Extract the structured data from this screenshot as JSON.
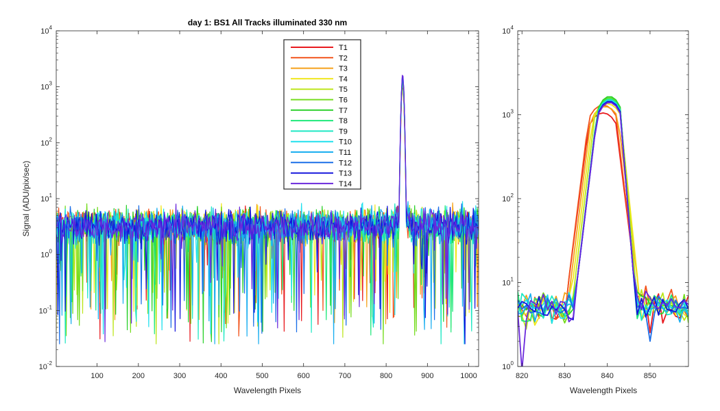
{
  "chart_data": [
    {
      "type": "line",
      "title": "day 1: BS1   All Tracks illuminated   330 nm",
      "xlabel": "Wavelength Pixels",
      "ylabel": "Signal (ADU/pix/sec)",
      "yscale": "log",
      "xlim": [
        1,
        1024
      ],
      "ylim": [
        0.01,
        10000
      ],
      "xticks": [
        100,
        200,
        300,
        400,
        500,
        600,
        700,
        800,
        900,
        1000
      ],
      "yticks": [
        0.01,
        0.1,
        1,
        10,
        100,
        1000,
        10000
      ],
      "ytick_labels": [
        [
          "10",
          "-2"
        ],
        [
          "10",
          "-1"
        ],
        [
          "10",
          "0"
        ],
        [
          "10",
          "1"
        ],
        [
          "10",
          "2"
        ],
        [
          "10",
          "3"
        ],
        [
          "10",
          "4"
        ]
      ],
      "grid": false,
      "legend_position": "top-center",
      "baseline_signal_range": [
        0.03,
        9
      ],
      "peak": {
        "x_center": 840,
        "x_range": [
          834,
          846
        ],
        "y_max": [
          1000,
          1600
        ]
      },
      "series": [
        {
          "name": "T1",
          "color": "#e8191e"
        },
        {
          "name": "T2",
          "color": "#f2541c"
        },
        {
          "name": "T3",
          "color": "#f5a11a"
        },
        {
          "name": "T4",
          "color": "#f0e61c"
        },
        {
          "name": "T5",
          "color": "#bde61c"
        },
        {
          "name": "T6",
          "color": "#74dc1c"
        },
        {
          "name": "T7",
          "color": "#2cd12c"
        },
        {
          "name": "T8",
          "color": "#1ee87a"
        },
        {
          "name": "T9",
          "color": "#1ee8c4"
        },
        {
          "name": "T10",
          "color": "#1ee0ee"
        },
        {
          "name": "T11",
          "color": "#1aaef0"
        },
        {
          "name": "T12",
          "color": "#1a6ee8"
        },
        {
          "name": "T13",
          "color": "#1414dc"
        },
        {
          "name": "T14",
          "color": "#6a28dc"
        }
      ]
    },
    {
      "type": "line",
      "title": "",
      "xlabel": "Wavelength Pixels",
      "ylabel": "",
      "yscale": "log",
      "xlim": [
        819,
        859
      ],
      "ylim": [
        1,
        10000
      ],
      "xticks": [
        820,
        830,
        840,
        850
      ],
      "yticks": [
        1,
        10,
        100,
        1000,
        10000
      ],
      "ytick_labels": [
        [
          "10",
          "0"
        ],
        [
          "10",
          "1"
        ],
        [
          "10",
          "2"
        ],
        [
          "10",
          "3"
        ],
        [
          "10",
          "4"
        ]
      ],
      "grid": false,
      "zoom_of_series": "same 14 tracks T1–T14",
      "peak_curves": [
        {
          "track": "T1",
          "left_base": 830.5,
          "top_left": 836.0,
          "top_right": 842.0,
          "right_base": 847.0,
          "peak": 1050
        },
        {
          "track": "T2",
          "left_base": 830.5,
          "top_left": 836.0,
          "top_right": 842.0,
          "right_base": 847.0,
          "peak": 1300
        },
        {
          "track": "T3",
          "left_base": 831.0,
          "top_left": 836.5,
          "top_right": 842.5,
          "right_base": 847.5,
          "peak": 1250
        },
        {
          "track": "T4",
          "left_base": 831.5,
          "top_left": 837.0,
          "top_right": 843.0,
          "right_base": 847.5,
          "peak": 1350
        },
        {
          "track": "T5",
          "left_base": 832.0,
          "top_left": 837.5,
          "top_right": 843.0,
          "right_base": 847.0,
          "peak": 1500
        },
        {
          "track": "T6",
          "left_base": 832.5,
          "top_left": 838.0,
          "top_right": 843.0,
          "right_base": 846.5,
          "peak": 1600
        },
        {
          "track": "T7",
          "left_base": 832.5,
          "top_left": 838.0,
          "top_right": 843.0,
          "right_base": 846.5,
          "peak": 1650
        },
        {
          "track": "T8",
          "left_base": 832.5,
          "top_left": 838.0,
          "top_right": 843.0,
          "right_base": 846.5,
          "peak": 1550
        },
        {
          "track": "T9",
          "left_base": 832.5,
          "top_left": 838.0,
          "top_right": 843.0,
          "right_base": 846.5,
          "peak": 1500
        },
        {
          "track": "T10",
          "left_base": 832.5,
          "top_left": 838.0,
          "top_right": 843.0,
          "right_base": 846.5,
          "peak": 1500
        },
        {
          "track": "T11",
          "left_base": 832.5,
          "top_left": 838.0,
          "top_right": 843.0,
          "right_base": 846.5,
          "peak": 1450
        },
        {
          "track": "T12",
          "left_base": 832.5,
          "top_left": 838.0,
          "top_right": 843.0,
          "right_base": 846.5,
          "peak": 1400
        },
        {
          "track": "T13",
          "left_base": 832.5,
          "top_left": 838.0,
          "top_right": 843.0,
          "right_base": 846.5,
          "peak": 1450
        },
        {
          "track": "T14",
          "left_base": 832.5,
          "top_left": 838.0,
          "top_right": 843.0,
          "right_base": 846.5,
          "peak": 1400
        }
      ],
      "baseline_signal_range": [
        1.2,
        9
      ]
    }
  ]
}
